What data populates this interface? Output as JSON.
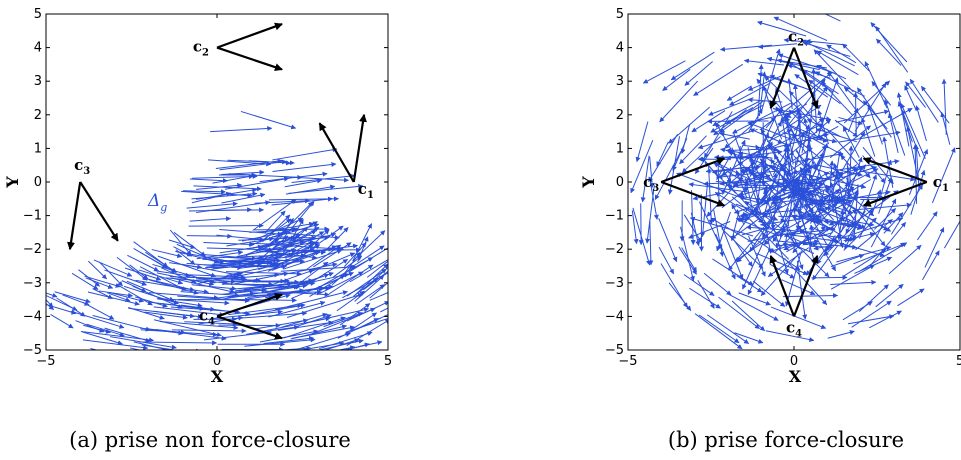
{
  "chart_data": [
    {
      "type": "quiver",
      "caption": "(a) prise non force-closure",
      "xlabel": "X",
      "ylabel": "Y",
      "xlim": [
        -5,
        5
      ],
      "ylim": [
        -5,
        5
      ],
      "xticks": [
        "−5",
        "0",
        "5"
      ],
      "yticks": [
        "5",
        "4",
        "3",
        "2",
        "1",
        "0",
        "−1",
        "−2",
        "−3",
        "−4",
        "−5"
      ],
      "field_label": "Δ",
      "field_label_sub": "g",
      "field_color": "#2a4fd8",
      "contact_color": "#000000",
      "contacts": [
        {
          "name": "c",
          "sub": "2",
          "x": 0,
          "y": 4,
          "arrows": [
            [
              1.9,
              4.7
            ],
            [
              1.9,
              3.35
            ]
          ]
        },
        {
          "name": "c",
          "sub": "1",
          "x": 4,
          "y": 0,
          "arrows": [
            [
              3.0,
              1.75
            ],
            [
              4.3,
              2.0
            ]
          ]
        },
        {
          "name": "c",
          "sub": "3",
          "x": -4,
          "y": 0,
          "arrows": [
            [
              -4.3,
              -2.0
            ],
            [
              -2.9,
              -1.75
            ]
          ]
        },
        {
          "name": "c",
          "sub": "4",
          "x": 0,
          "y": -4,
          "arrows": [
            [
              1.9,
              -3.35
            ],
            [
              1.9,
              -4.65
            ]
          ]
        }
      ]
    },
    {
      "type": "quiver",
      "caption": "(b) prise force-closure",
      "xlabel": "X",
      "ylabel": "Y",
      "xlim": [
        -5,
        5
      ],
      "ylim": [
        -5,
        5
      ],
      "xticks": [
        "−5",
        "0",
        "5"
      ],
      "yticks": [
        "5",
        "4",
        "3",
        "2",
        "1",
        "0",
        "−1",
        "−2",
        "−3",
        "−4",
        "−5"
      ],
      "field_color": "#2a4fd8",
      "contact_color": "#000000",
      "contacts": [
        {
          "name": "c",
          "sub": "2",
          "x": 0,
          "y": 4,
          "arrows": [
            [
              -0.7,
              2.2
            ],
            [
              0.7,
              2.2
            ]
          ]
        },
        {
          "name": "c",
          "sub": "1",
          "x": 4,
          "y": 0,
          "arrows": [
            [
              2.1,
              0.7
            ],
            [
              2.1,
              -0.7
            ]
          ]
        },
        {
          "name": "c",
          "sub": "3",
          "x": -4,
          "y": 0,
          "arrows": [
            [
              -2.1,
              0.7
            ],
            [
              -2.1,
              -0.7
            ]
          ]
        },
        {
          "name": "c",
          "sub": "4",
          "x": 0,
          "y": -4,
          "arrows": [
            [
              -0.7,
              -2.2
            ],
            [
              0.7,
              -2.2
            ]
          ]
        }
      ]
    }
  ]
}
